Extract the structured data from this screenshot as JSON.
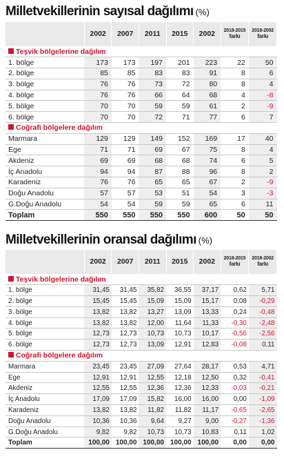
{
  "table1": {
    "title": "Milletvekillerinin sayısal dağılımı",
    "unit": "(%)",
    "headers": [
      "2002",
      "2007",
      "2011",
      "2015",
      "2002"
    ],
    "diff_headers": [
      {
        "line1": "2018-2015",
        "line2": "farkı"
      },
      {
        "line1": "2018-2002",
        "line2": "farkı"
      }
    ],
    "sections": [
      {
        "title": "Teşvik bölgelerine dağılım",
        "rows": [
          {
            "label": "1. bölge",
            "values": [
              "173",
              "173",
              "197",
              "201",
              "223",
              "22",
              "50"
            ]
          },
          {
            "label": "2. bölge",
            "values": [
              "85",
              "85",
              "83",
              "83",
              "91",
              "8",
              "6"
            ]
          },
          {
            "label": "3. bölge",
            "values": [
              "76",
              "76",
              "73",
              "72",
              "80",
              "8",
              "4"
            ]
          },
          {
            "label": "4. bölge",
            "values": [
              "76",
              "76",
              "66",
              "64",
              "68",
              "4",
              "-8"
            ]
          },
          {
            "label": "5. bölge",
            "values": [
              "70",
              "70",
              "59",
              "59",
              "61",
              "2",
              "-9"
            ]
          },
          {
            "label": "6. bölge",
            "values": [
              "70",
              "70",
              "72",
              "71",
              "77",
              "6",
              "7"
            ]
          }
        ]
      },
      {
        "title": "Coğrafi bölgelere dağılım",
        "rows": [
          {
            "label": "Marmara",
            "values": [
              "129",
              "129",
              "149",
              "152",
              "169",
              "17",
              "40"
            ]
          },
          {
            "label": "Ege",
            "values": [
              "71",
              "71",
              "69",
              "67",
              "75",
              "8",
              "4"
            ]
          },
          {
            "label": "Akdeniz",
            "values": [
              "69",
              "69",
              "68",
              "68",
              "74",
              "6",
              "5"
            ]
          },
          {
            "label": "İç Anadolu",
            "values": [
              "94",
              "94",
              "87",
              "88",
              "96",
              "8",
              "2"
            ]
          },
          {
            "label": "Karadeniz",
            "values": [
              "76",
              "76",
              "65",
              "65",
              "67",
              "2",
              "-9"
            ]
          },
          {
            "label": "Doğu Anadolu",
            "values": [
              "57",
              "57",
              "53",
              "51",
              "54",
              "3",
              "-3"
            ]
          },
          {
            "label": "G.Doğu Anadolu",
            "values": [
              "54",
              "54",
              "59",
              "59",
              "65",
              "6",
              "11"
            ]
          }
        ]
      }
    ],
    "total": {
      "label": "Toplam",
      "values": [
        "550",
        "550",
        "550",
        "550",
        "600",
        "50",
        "50"
      ]
    }
  },
  "table2": {
    "title": "Milletvekillerinin oransal dağılımı",
    "unit": "(%)",
    "headers": [
      "2002",
      "2007",
      "2011",
      "2015",
      "2002"
    ],
    "diff_headers": [
      {
        "line1": "2018-2015",
        "line2": "farkı"
      },
      {
        "line1": "2018-2002",
        "line2": "farkı"
      }
    ],
    "sections": [
      {
        "title": "Teşvik bölgelerine dağılım",
        "rows": [
          {
            "label": "1. bölge",
            "values": [
              "31,45",
              "31,45",
              "35,82",
              "36,55",
              "37,17",
              "0,62",
              "5,71"
            ]
          },
          {
            "label": "2. bölge",
            "values": [
              "15,45",
              "15,45",
              "15,09",
              "15,09",
              "15,17",
              "0,08",
              "-0,29"
            ]
          },
          {
            "label": "3. bölge",
            "values": [
              "13,82",
              "13,82",
              "13,27",
              "13,09",
              "13,33",
              "0,24",
              "-0,48"
            ]
          },
          {
            "label": "4. bölge",
            "values": [
              "13,82",
              "13,82",
              "12,00",
              "11,64",
              "11,33",
              "-0,30",
              "-2,48"
            ]
          },
          {
            "label": "5. bölge",
            "values": [
              "12,73",
              "12,73",
              "10,73",
              "10,73",
              "10,17",
              "-0,56",
              "-2,56"
            ]
          },
          {
            "label": "6. bölge",
            "values": [
              "12,73",
              "12,73",
              "13,09",
              "12,91",
              "12,83",
              "-0,08",
              "0,11"
            ]
          }
        ]
      },
      {
        "title": "Coğrafi bölgelere dağılım",
        "rows": [
          {
            "label": "Marmara",
            "values": [
              "23,45",
              "23,45",
              "27,09",
              "27,64",
              "28,17",
              "0,53",
              "4,71"
            ]
          },
          {
            "label": "Ege",
            "values": [
              "12,91",
              "12,91",
              "12,55",
              "12,18",
              "12,50",
              "0,32",
              "-0,41"
            ]
          },
          {
            "label": "Akdeniz",
            "values": [
              "12,55",
              "12,55",
              "12,36",
              "12,36",
              "12,33",
              "-0,03",
              "-0,21"
            ]
          },
          {
            "label": "İç Anadolu",
            "values": [
              "17,09",
              "17,09",
              "15,82",
              "16,00",
              "16,00",
              "0,00",
              "-1,09"
            ]
          },
          {
            "label": "Karadeniz",
            "values": [
              "13,82",
              "13,82",
              "11,82",
              "11,82",
              "11,17",
              "-0,65",
              "-2,65"
            ]
          },
          {
            "label": "Doğu Anadolu",
            "values": [
              "10,36",
              "10,36",
              "9,64",
              "9,27",
              "9,00",
              "-0,27",
              "-1,36"
            ]
          },
          {
            "label": "G.Doğu Anadolu",
            "values": [
              "9,82",
              "9,82",
              "10,73",
              "10,73",
              "10,83",
              "0,11",
              "1,02"
            ]
          }
        ]
      }
    ],
    "total": {
      "label": "Toplam",
      "values": [
        "100,00",
        "100,00",
        "100,00",
        "100,00",
        "100,00",
        "0,00",
        "0,00"
      ]
    }
  }
}
